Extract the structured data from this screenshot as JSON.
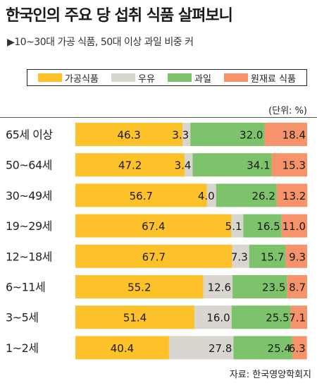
{
  "title": "한국인의  주요 당 섭취 식품 살펴보니",
  "subtitle": "▶10~30대 가공 식품, 50대 이상 과일 비중 커",
  "unit": "(단위: %)",
  "source": "자료: 한국영양학회지",
  "chart_data": {
    "type": "bar",
    "stacked": true,
    "orientation": "horizontal",
    "categories": [
      "65세 이상",
      "50~64세",
      "30~49세",
      "19~29세",
      "12~18세",
      "6~11세",
      "3~5세",
      "1~2세"
    ],
    "series": [
      {
        "name": "가공식품",
        "color": "#FDC12A",
        "values": [
          46.3,
          47.2,
          56.7,
          67.4,
          67.7,
          55.2,
          51.4,
          40.4
        ]
      },
      {
        "name": "우유",
        "color": "#D9D6CF",
        "values": [
          3.3,
          3.4,
          4.0,
          5.1,
          7.3,
          12.6,
          16.0,
          27.8
        ]
      },
      {
        "name": "과일",
        "color": "#7DC36B",
        "values": [
          32.0,
          34.1,
          26.2,
          16.5,
          15.7,
          23.5,
          25.5,
          25.4
        ]
      },
      {
        "name": "원재료 식품",
        "color": "#F6936A",
        "values": [
          18.4,
          15.3,
          13.2,
          11.0,
          9.3,
          8.7,
          7.1,
          6.3
        ]
      }
    ],
    "xlim": [
      0,
      100
    ],
    "legend": "top"
  }
}
